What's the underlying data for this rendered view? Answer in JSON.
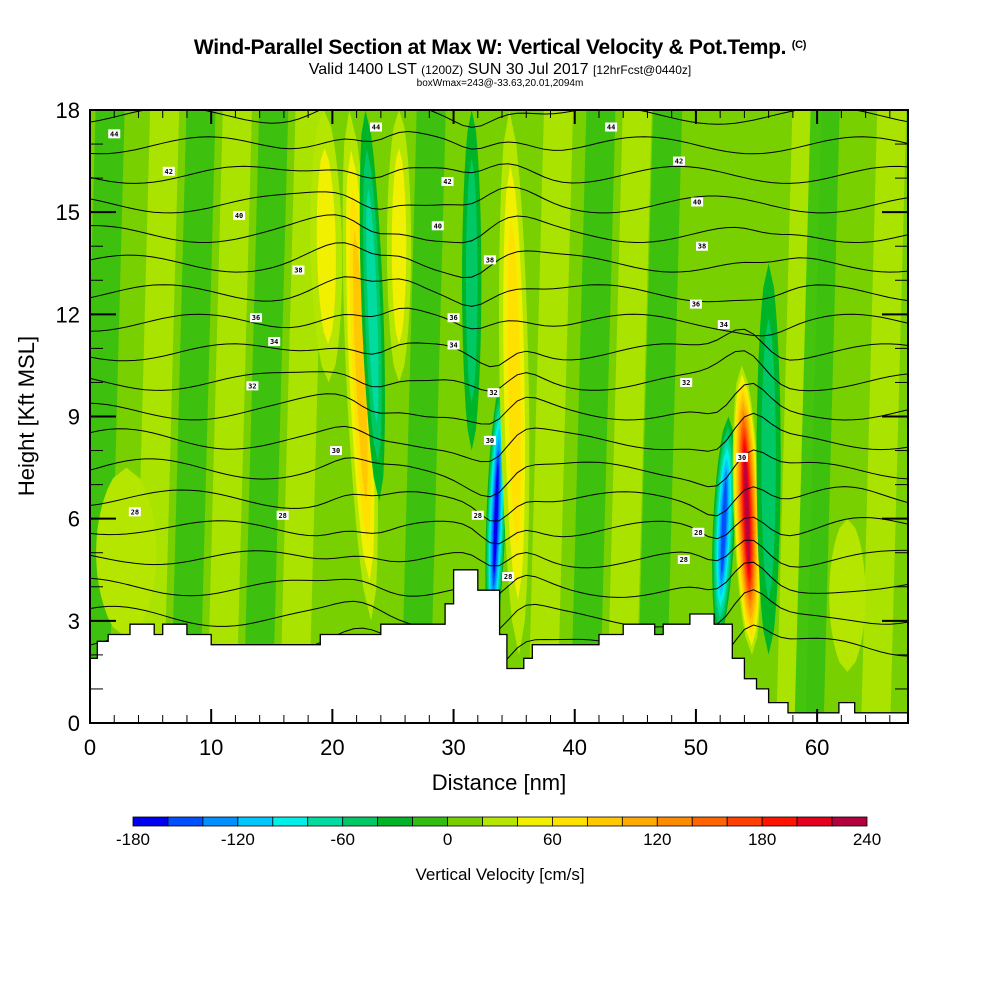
{
  "header": {
    "title": "Wind-Parallel Section at Max W: Vertical Velocity & Pot.Temp.",
    "copyright": "(C)",
    "valid_prefix": "Valid 1400 LST",
    "valid_utc": "(1200Z)",
    "valid_date": "SUN 30 Jul 2017",
    "forecast": "[12hrFcst@0440z]",
    "box_info": "boxWmax=243@-33.63,20.01,2094m"
  },
  "chart_data": {
    "type": "heatmap",
    "title": "Wind-Parallel Section at Max W: Vertical Velocity & Pot.Temp.",
    "subtitle": "Valid 1400 LST (1200Z) SUN 30 Jul 2017 [12hrFcst@0440z]",
    "annotation": "boxWmax=243@-33.63,20.01,2094m",
    "xlabel": "Distance [nm]",
    "ylabel": "Height [Kft MSL]",
    "xlim": [
      0,
      67.5
    ],
    "ylim": [
      0,
      18
    ],
    "x_ticks": [
      0,
      10,
      20,
      30,
      40,
      50,
      60
    ],
    "x_minor_step": 2,
    "y_ticks": [
      0,
      3,
      6,
      9,
      12,
      15,
      18
    ],
    "y_minor_step": 1,
    "grid": false,
    "colorbar": {
      "title": "Vertical Velocity [cm/s]",
      "placement": "bottom",
      "min": -180,
      "max": 240,
      "step": 20,
      "tick_labels": [
        "-180",
        "-120",
        "-60",
        "0",
        "60",
        "120",
        "180",
        "240"
      ],
      "tick_values": [
        -180,
        -120,
        -60,
        0,
        60,
        120,
        180,
        240
      ],
      "colors": [
        "#0000f0",
        "#0050ff",
        "#0090ff",
        "#00c8ff",
        "#00f0e8",
        "#00dca0",
        "#00c864",
        "#00b428",
        "#32be10",
        "#78d000",
        "#b4e600",
        "#f0f000",
        "#ffe100",
        "#ffc800",
        "#ffaa00",
        "#ff8c00",
        "#ff6400",
        "#ff4000",
        "#ff1400",
        "#e60020",
        "#b40040"
      ]
    },
    "background_velocity": 0,
    "velocity_features": [
      {
        "name": "updraft-22nm",
        "x_center": 22.3,
        "x_halfwidth": 1.2,
        "y_range": [
          3.0,
          18
        ],
        "tilt": -0.12,
        "peak": 90
      },
      {
        "name": "downdraft-23nm",
        "x_center": 23.3,
        "x_halfwidth": 0.9,
        "y_range": [
          6.5,
          18
        ],
        "tilt": -0.1,
        "peak": -80
      },
      {
        "name": "updraft-19nm-upper",
        "x_center": 19.5,
        "x_halfwidth": 1.3,
        "y_range": [
          10,
          18
        ],
        "tilt": -0.05,
        "peak": 60
      },
      {
        "name": "updraft-25nm",
        "x_center": 25.5,
        "x_halfwidth": 1.0,
        "y_range": [
          10,
          18
        ],
        "tilt": 0.0,
        "peak": 55
      },
      {
        "name": "updraft-3nm-low",
        "x_center": 3.0,
        "x_halfwidth": 2.5,
        "y_range": [
          2.5,
          7.5
        ],
        "tilt": 0.0,
        "peak": 30
      },
      {
        "name": "downdraft-33nm",
        "x_center": 33.5,
        "x_halfwidth": 0.8,
        "y_range": [
          2.0,
          10
        ],
        "tilt": 0.1,
        "peak": -170
      },
      {
        "name": "updraft-35nm",
        "x_center": 35.0,
        "x_halfwidth": 1.2,
        "y_range": [
          2.0,
          18
        ],
        "tilt": -0.05,
        "peak": 80
      },
      {
        "name": "downdraft-31nm",
        "x_center": 31.5,
        "x_halfwidth": 0.8,
        "y_range": [
          8,
          18
        ],
        "tilt": 0.0,
        "peak": -60
      },
      {
        "name": "downdraft-52nm",
        "x_center": 52.3,
        "x_halfwidth": 0.9,
        "y_range": [
          2.5,
          9
        ],
        "tilt": 0.12,
        "peak": -160
      },
      {
        "name": "updraft-54nm",
        "x_center": 54.2,
        "x_halfwidth": 1.1,
        "y_range": [
          2.0,
          10.5
        ],
        "tilt": -0.1,
        "peak": 243
      },
      {
        "name": "downdraft-56nm",
        "x_center": 56.0,
        "x_halfwidth": 1.0,
        "y_range": [
          2.0,
          13.5
        ],
        "tilt": 0.0,
        "peak": -50
      },
      {
        "name": "updraft-62nm",
        "x_center": 62.5,
        "x_halfwidth": 1.5,
        "y_range": [
          1.5,
          6
        ],
        "tilt": 0.0,
        "peak": 40
      }
    ],
    "theta_contour_labels": [
      {
        "value": "44",
        "x": 2.0,
        "y": 17.3
      },
      {
        "value": "42",
        "x": 6.5,
        "y": 16.2
      },
      {
        "value": "40",
        "x": 12.3,
        "y": 14.9
      },
      {
        "value": "38",
        "x": 17.2,
        "y": 13.3
      },
      {
        "value": "36",
        "x": 13.7,
        "y": 11.9
      },
      {
        "value": "34",
        "x": 15.2,
        "y": 11.2
      },
      {
        "value": "32",
        "x": 13.4,
        "y": 9.9
      },
      {
        "value": "30",
        "x": 20.3,
        "y": 8.0
      },
      {
        "value": "28",
        "x": 3.7,
        "y": 6.2
      },
      {
        "value": "28",
        "x": 15.9,
        "y": 6.1
      },
      {
        "value": "44",
        "x": 23.6,
        "y": 17.5
      },
      {
        "value": "42",
        "x": 29.5,
        "y": 15.9
      },
      {
        "value": "40",
        "x": 28.7,
        "y": 14.6
      },
      {
        "value": "38",
        "x": 33.0,
        "y": 13.6
      },
      {
        "value": "36",
        "x": 30.0,
        "y": 11.9
      },
      {
        "value": "34",
        "x": 30.0,
        "y": 11.1
      },
      {
        "value": "32",
        "x": 33.3,
        "y": 9.7
      },
      {
        "value": "30",
        "x": 33.0,
        "y": 8.3
      },
      {
        "value": "28",
        "x": 32.0,
        "y": 6.1
      },
      {
        "value": "28",
        "x": 34.5,
        "y": 4.3
      },
      {
        "value": "44",
        "x": 43.0,
        "y": 17.5
      },
      {
        "value": "42",
        "x": 48.6,
        "y": 16.5
      },
      {
        "value": "40",
        "x": 50.1,
        "y": 15.3
      },
      {
        "value": "38",
        "x": 50.5,
        "y": 14.0
      },
      {
        "value": "36",
        "x": 50.0,
        "y": 12.3
      },
      {
        "value": "34",
        "x": 52.3,
        "y": 11.7
      },
      {
        "value": "32",
        "x": 49.2,
        "y": 10.0
      },
      {
        "value": "30",
        "x": 53.8,
        "y": 7.8
      },
      {
        "value": "28",
        "x": 50.2,
        "y": 5.6
      },
      {
        "value": "28",
        "x": 49.0,
        "y": 4.8
      }
    ],
    "theta_levels": [
      26,
      27,
      28,
      29,
      30,
      31,
      32,
      33,
      34,
      35,
      36,
      37,
      38,
      39,
      40,
      41,
      42,
      43,
      44,
      45
    ],
    "terrain_kft": [
      [
        0,
        1.9
      ],
      [
        0.6,
        2.4
      ],
      [
        1.5,
        2.6
      ],
      [
        3.3,
        2.9
      ],
      [
        5.3,
        2.6
      ],
      [
        6.0,
        2.9
      ],
      [
        8.0,
        2.6
      ],
      [
        10.0,
        2.3
      ],
      [
        17.0,
        2.3
      ],
      [
        19.0,
        2.6
      ],
      [
        24.0,
        2.9
      ],
      [
        29.3,
        3.5
      ],
      [
        30.0,
        3.9
      ],
      [
        30.0,
        4.5
      ],
      [
        32.0,
        4.5
      ],
      [
        32.0,
        3.9
      ],
      [
        33.8,
        3.9
      ],
      [
        33.8,
        2.6
      ],
      [
        34.4,
        2.6
      ],
      [
        34.4,
        1.6
      ],
      [
        35.8,
        1.6
      ],
      [
        35.8,
        1.9
      ],
      [
        36.5,
        1.9
      ],
      [
        36.5,
        2.3
      ],
      [
        42.0,
        2.3
      ],
      [
        42.0,
        2.6
      ],
      [
        44.0,
        2.6
      ],
      [
        44.0,
        2.9
      ],
      [
        46.0,
        2.9
      ],
      [
        46.6,
        2.6
      ],
      [
        47.3,
        2.9
      ],
      [
        49.4,
        2.9
      ],
      [
        49.5,
        3.2
      ],
      [
        51.5,
        3.2
      ],
      [
        51.5,
        2.9
      ],
      [
        52.8,
        2.9
      ],
      [
        53.0,
        1.9
      ],
      [
        53.5,
        1.9
      ],
      [
        54.0,
        1.3
      ],
      [
        55.0,
        1.0
      ],
      [
        56.0,
        0.6
      ],
      [
        57.6,
        0.3
      ],
      [
        60.0,
        0.3
      ],
      [
        60.0,
        0.3
      ],
      [
        61.8,
        0.3
      ],
      [
        61.8,
        0.6
      ],
      [
        63.1,
        0.6
      ],
      [
        63.1,
        0.3
      ],
      [
        67.5,
        0.3
      ]
    ]
  }
}
